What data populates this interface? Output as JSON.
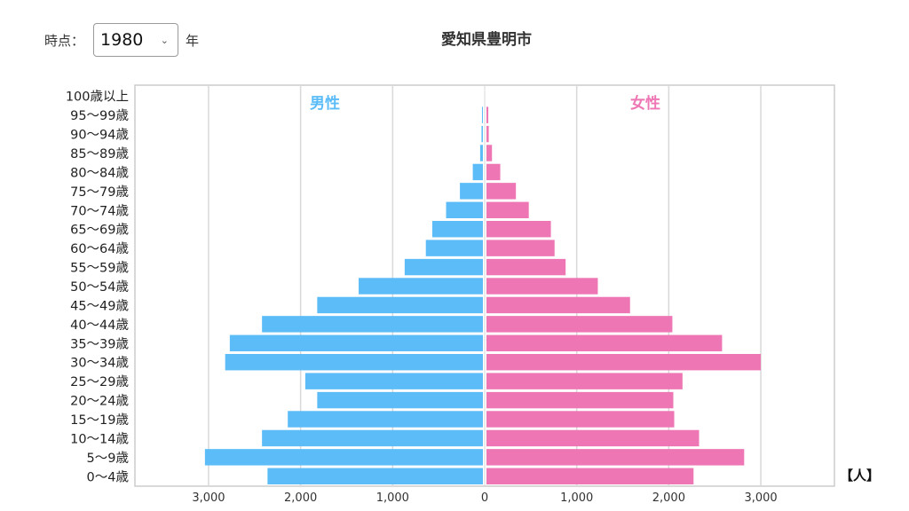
{
  "header": {
    "time_label": "時点：",
    "year_value": "1980",
    "year_suffix": "年",
    "title": "愛知県豊明市"
  },
  "unit_label": "【人】",
  "chart_data": {
    "type": "bar",
    "orientation": "horizontal-diverging",
    "title": "愛知県豊明市",
    "categories": [
      "100歳以上",
      "95〜99歳",
      "90〜94歳",
      "85〜89歳",
      "80〜84歳",
      "75〜79歳",
      "70〜74歳",
      "65〜69歳",
      "60〜64歳",
      "55〜59歳",
      "50〜54歳",
      "45〜49歳",
      "40〜44歳",
      "35〜39歳",
      "30〜34歳",
      "25〜29歳",
      "20〜24歳",
      "15〜19歳",
      "10〜14歳",
      "5〜9歳",
      "0〜4歳"
    ],
    "series": [
      {
        "name": "男性",
        "color": "#5bbcf8",
        "values": [
          0,
          10,
          15,
          30,
          110,
          250,
          400,
          550,
          620,
          850,
          1350,
          1800,
          2400,
          2750,
          2800,
          1930,
          1800,
          2120,
          2400,
          3020,
          2340
        ]
      },
      {
        "name": "女性",
        "color": "#ee76b4",
        "values": [
          0,
          20,
          25,
          60,
          150,
          320,
          460,
          700,
          740,
          860,
          1210,
          1560,
          2020,
          2560,
          2980,
          2130,
          2030,
          2040,
          2310,
          2800,
          2250
        ]
      }
    ],
    "xlim": [
      -3800,
      3800
    ],
    "xticks": [
      3000,
      2000,
      1000,
      0,
      1000,
      2000,
      3000
    ],
    "xtick_labels": [
      "3,000",
      "2,000",
      "1,000",
      "0",
      "1,000",
      "2,000",
      "3,000"
    ],
    "grid": true,
    "legend_placement": "inside-top"
  }
}
